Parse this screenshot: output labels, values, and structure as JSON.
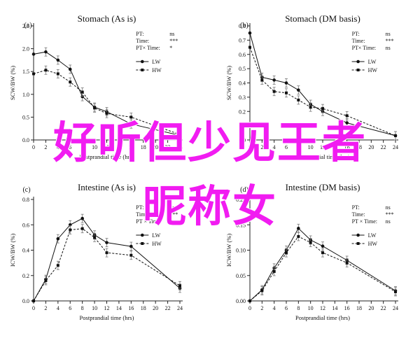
{
  "overlay": {
    "line1": "好听但少见王者",
    "line2": "昵称女"
  },
  "chart_data": [
    {
      "type": "line",
      "panel_label": "(a)",
      "title": "Stomach (As is)",
      "xlabel": "Postprandial time (hrs)",
      "ylabel": "SCW/BW (%)",
      "xlim": [
        0,
        24
      ],
      "ylim": [
        0,
        2.5
      ],
      "xticks": [
        0,
        2,
        4,
        6,
        8,
        10,
        12,
        14,
        16,
        18,
        20,
        22,
        24
      ],
      "yticks": [
        "0.0",
        "0.5",
        "1.0",
        "1.5",
        "2.0",
        "2.5"
      ],
      "stats": [
        [
          "PT:",
          "ns"
        ],
        [
          "Time:",
          "***"
        ],
        [
          "PT× Time:",
          "*"
        ]
      ],
      "series": [
        {
          "name": "LW",
          "style": "solid",
          "marker": "circle",
          "x": [
            0,
            2,
            4,
            6,
            8,
            10,
            12,
            16,
            24
          ],
          "y": [
            1.88,
            1.93,
            1.75,
            1.55,
            0.95,
            0.72,
            0.62,
            0.35,
            0.1
          ]
        },
        {
          "name": "HW",
          "style": "dashed",
          "marker": "square",
          "x": [
            0,
            2,
            4,
            6,
            8,
            10,
            12,
            16,
            24
          ],
          "y": [
            1.45,
            1.53,
            1.45,
            1.27,
            1.05,
            0.7,
            0.58,
            0.5,
            0.12
          ]
        }
      ]
    },
    {
      "type": "line",
      "panel_label": "(b)",
      "title": "Stomach (DM basis)",
      "xlabel": "Postprandial time (hrs)",
      "ylabel": "SCW/BW (%)",
      "xlim": [
        0,
        24
      ],
      "ylim": [
        0,
        0.8
      ],
      "xticks": [
        0,
        2,
        4,
        6,
        8,
        10,
        12,
        14,
        16,
        18,
        20,
        22,
        24
      ],
      "yticks": [
        "0.0",
        "0.1",
        "0.2",
        "0.3",
        "0.4",
        "0.5",
        "0.6",
        "0.7",
        "0.8"
      ],
      "stats": [
        [
          "PT:",
          "ns"
        ],
        [
          "Time:",
          "***"
        ],
        [
          "PT× Time:",
          "ns"
        ]
      ],
      "series": [
        {
          "name": "LW",
          "style": "solid",
          "marker": "circle",
          "x": [
            0,
            2,
            4,
            6,
            8,
            10,
            12,
            16,
            24
          ],
          "y": [
            0.75,
            0.44,
            0.42,
            0.4,
            0.35,
            0.25,
            0.2,
            0.12,
            0.03
          ]
        },
        {
          "name": "HW",
          "style": "dashed",
          "marker": "square",
          "x": [
            0,
            2,
            4,
            6,
            8,
            10,
            12,
            16,
            24
          ],
          "y": [
            0.65,
            0.42,
            0.34,
            0.33,
            0.28,
            0.23,
            0.22,
            0.17,
            0.03
          ]
        }
      ]
    },
    {
      "type": "line",
      "panel_label": "(c)",
      "title": "Intestine (As is)",
      "xlabel": "Postprandial time (hrs)",
      "ylabel": "ICW/BW (%)",
      "xlim": [
        0,
        24
      ],
      "ylim": [
        0,
        0.8
      ],
      "xticks": [
        0,
        2,
        4,
        6,
        8,
        10,
        12,
        14,
        16,
        18,
        20,
        22,
        24
      ],
      "yticks": [
        "0.0",
        "0.2",
        "0.4",
        "0.6",
        "0.8"
      ],
      "stats": [
        [
          "PT:",
          "ns"
        ],
        [
          "Time:",
          "***"
        ],
        [
          "PT × Time:",
          "ns"
        ]
      ],
      "series": [
        {
          "name": "LW",
          "style": "solid",
          "marker": "circle",
          "x": [
            0,
            2,
            4,
            6,
            8,
            10,
            12,
            16,
            24
          ],
          "y": [
            0.0,
            0.17,
            0.49,
            0.6,
            0.65,
            0.52,
            0.46,
            0.43,
            0.1
          ]
        },
        {
          "name": "HW",
          "style": "dashed",
          "marker": "square",
          "x": [
            0,
            2,
            4,
            6,
            8,
            10,
            12,
            16,
            24
          ],
          "y": [
            0.0,
            0.16,
            0.28,
            0.56,
            0.57,
            0.5,
            0.38,
            0.36,
            0.12
          ]
        }
      ]
    },
    {
      "type": "line",
      "panel_label": "(d)",
      "title": "Intestine (DM basis)",
      "xlabel": "Postprandial time (hrs)",
      "ylabel": "ICW/BW (%)",
      "xlim": [
        0,
        24
      ],
      "ylim": [
        0,
        0.2
      ],
      "xticks": [
        0,
        2,
        4,
        6,
        8,
        10,
        12,
        14,
        16,
        18,
        20,
        22,
        24
      ],
      "yticks": [
        "0.00",
        "0.05",
        "0.10",
        "0.15",
        "0.20"
      ],
      "stats": [
        [
          "PT:",
          "ns"
        ],
        [
          "Time:",
          "***"
        ],
        [
          "PT × Time:",
          "ns"
        ]
      ],
      "series": [
        {
          "name": "LW",
          "style": "solid",
          "marker": "circle",
          "x": [
            0,
            2,
            4,
            6,
            8,
            10,
            12,
            16,
            24
          ],
          "y": [
            0.0,
            0.022,
            0.065,
            0.1,
            0.143,
            0.12,
            0.108,
            0.08,
            0.02
          ]
        },
        {
          "name": "HW",
          "style": "dashed",
          "marker": "square",
          "x": [
            0,
            2,
            4,
            6,
            8,
            10,
            12,
            16,
            24
          ],
          "y": [
            0.0,
            0.02,
            0.058,
            0.095,
            0.127,
            0.115,
            0.095,
            0.075,
            0.018
          ]
        }
      ]
    }
  ]
}
